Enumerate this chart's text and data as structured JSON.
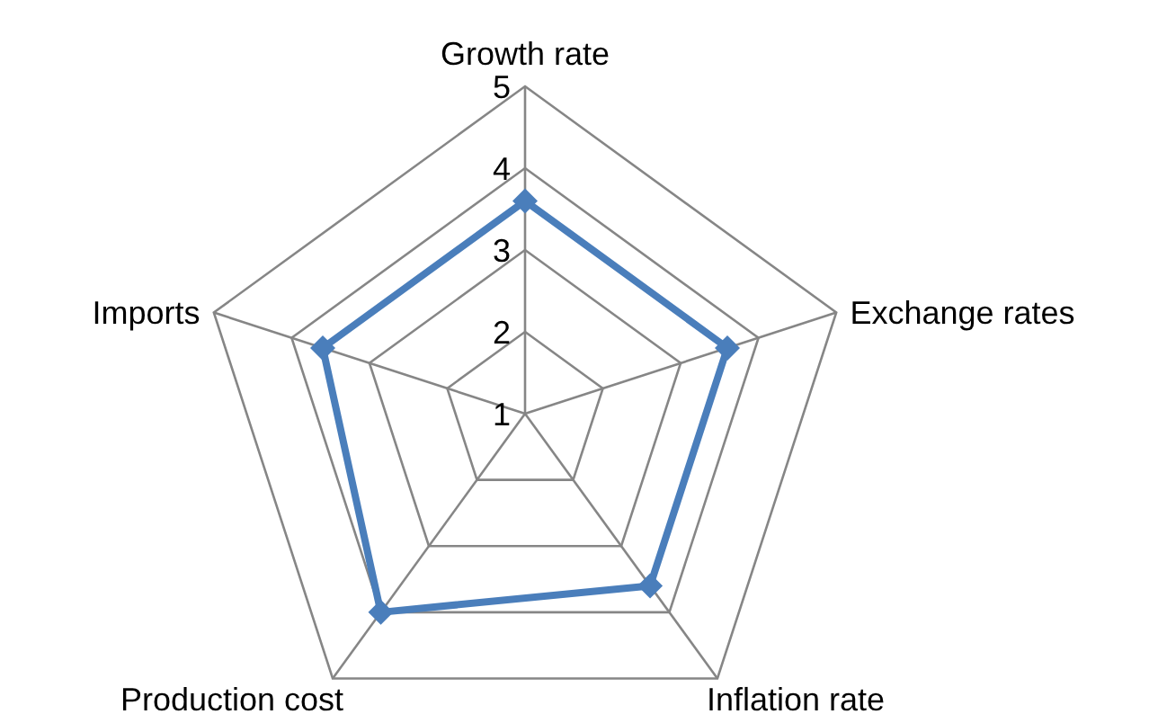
{
  "chart_data": {
    "type": "radar",
    "categories": [
      "Growth rate",
      "Exchange rates",
      "Inflation rate",
      "Production cost",
      "Imports"
    ],
    "series": [
      {
        "color": "#4a7ebb",
        "values": [
          3.6,
          3.6,
          3.6,
          4.0,
          3.6
        ]
      }
    ],
    "ylim": [
      1,
      5
    ],
    "yticks": [
      1,
      2,
      3,
      4,
      5
    ],
    "grid": true,
    "marker": "diamond",
    "line_style": "solid"
  }
}
